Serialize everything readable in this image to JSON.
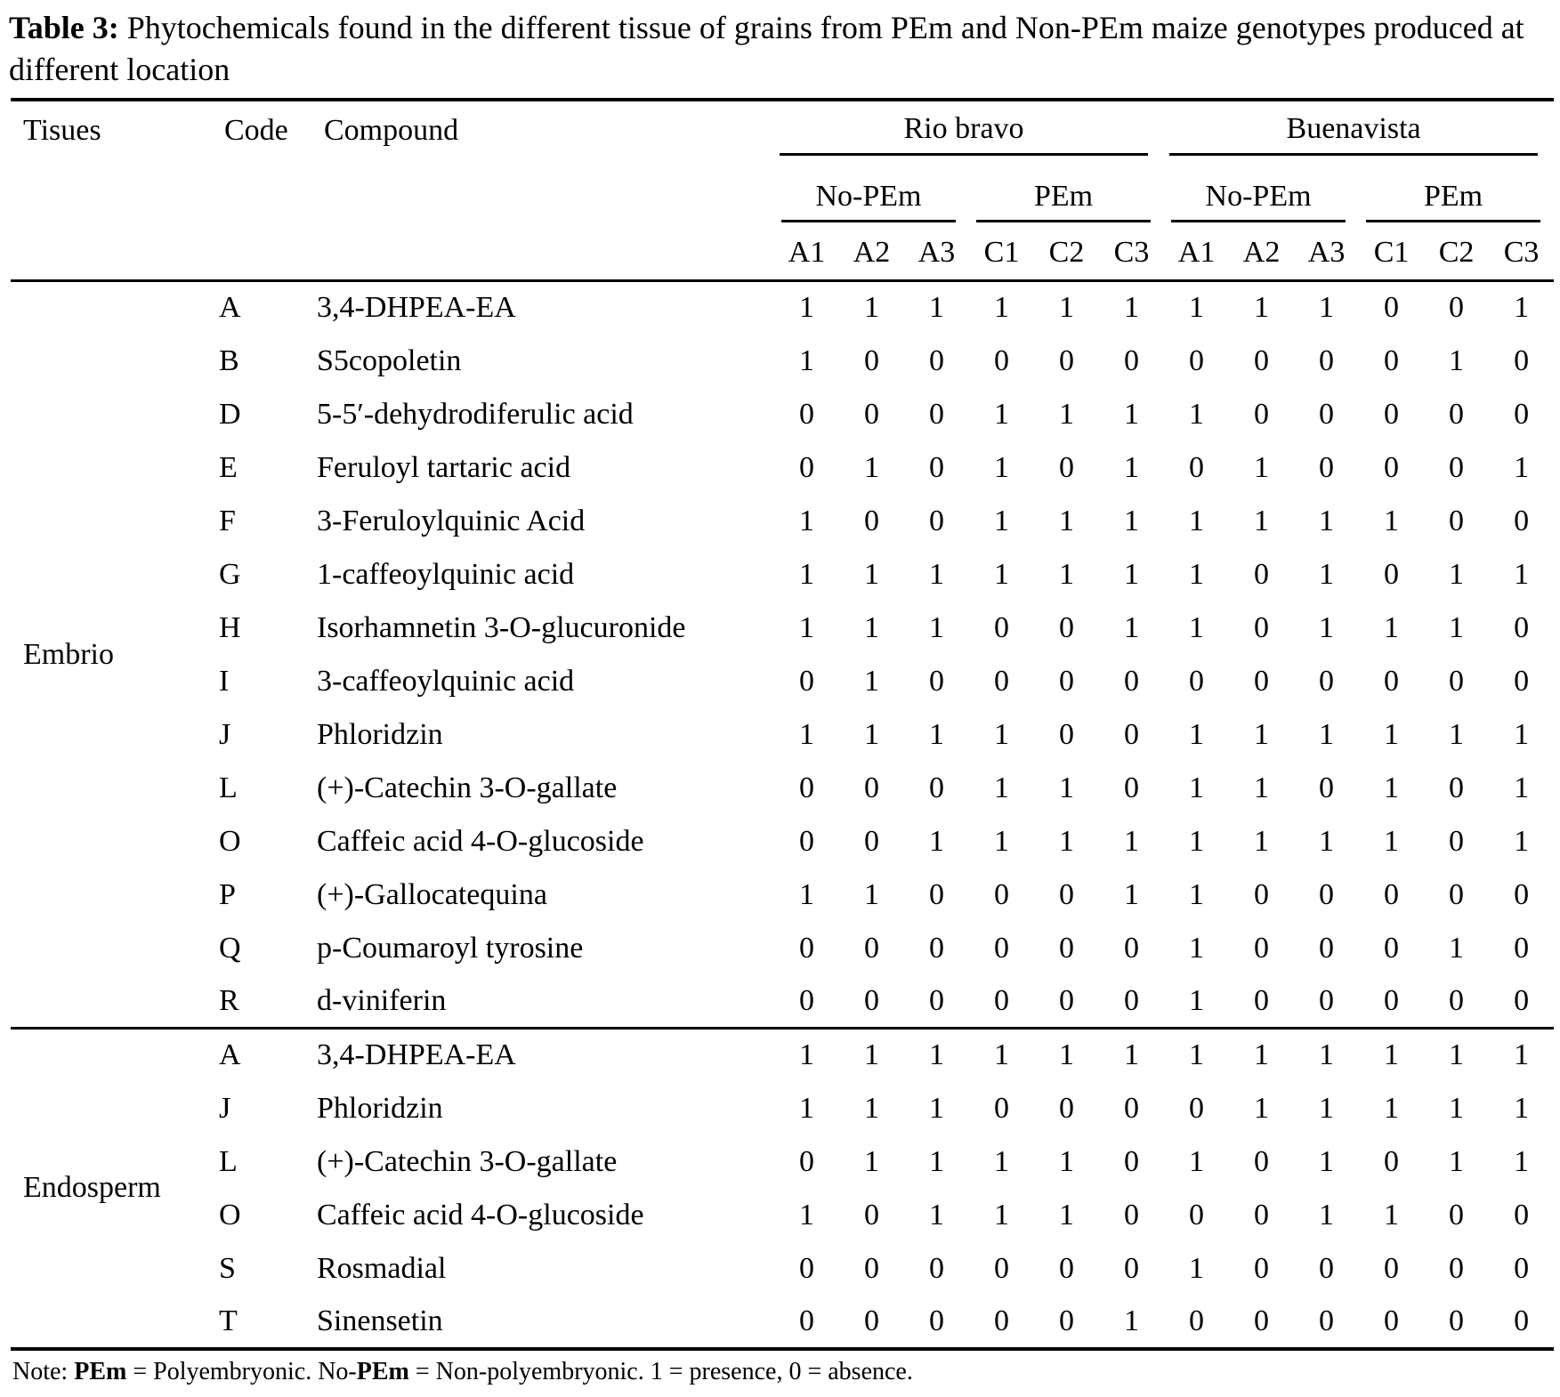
{
  "title": {
    "label": "Table 3:",
    "text": "Phytochemicals found in the different tissue of grains from PEm and Non-PEm maize genotypes produced at different location"
  },
  "header": {
    "tissues": "Tisues",
    "code": "Code",
    "compound": "Compound",
    "locations": [
      {
        "name": "Rio bravo",
        "groups": [
          {
            "name": "No-PEm",
            "cols": [
              "A1",
              "A2",
              "A3"
            ]
          },
          {
            "name": "PEm",
            "cols": [
              "C1",
              "C2",
              "C3"
            ]
          }
        ]
      },
      {
        "name": "Buenavista",
        "groups": [
          {
            "name": "No-PEm",
            "cols": [
              "A1",
              "A2",
              "A3"
            ]
          },
          {
            "name": "PEm",
            "cols": [
              "C1",
              "C2",
              "C3"
            ]
          }
        ]
      }
    ]
  },
  "sections": [
    {
      "tissue": "Embrio",
      "rows": [
        {
          "code": "A",
          "compound": "3,4-DHPEA-EA",
          "values": [
            1,
            1,
            1,
            1,
            1,
            1,
            1,
            1,
            1,
            0,
            0,
            1
          ]
        },
        {
          "code": "B",
          "compound": "S5copoletin",
          "values": [
            1,
            0,
            0,
            0,
            0,
            0,
            0,
            0,
            0,
            0,
            1,
            0
          ]
        },
        {
          "code": "D",
          "compound": "5-5′-dehydrodiferulic acid",
          "values": [
            0,
            0,
            0,
            1,
            1,
            1,
            1,
            0,
            0,
            0,
            0,
            0
          ]
        },
        {
          "code": "E",
          "compound": "Feruloyl tartaric acid",
          "values": [
            0,
            1,
            0,
            1,
            0,
            1,
            0,
            1,
            0,
            0,
            0,
            1
          ]
        },
        {
          "code": "F",
          "compound": "3-Feruloylquinic Acid",
          "values": [
            1,
            0,
            0,
            1,
            1,
            1,
            1,
            1,
            1,
            1,
            0,
            0
          ]
        },
        {
          "code": "G",
          "compound": "1-caffeoylquinic acid",
          "values": [
            1,
            1,
            1,
            1,
            1,
            1,
            1,
            0,
            1,
            0,
            1,
            1
          ]
        },
        {
          "code": "H",
          "compound": "Isorhamnetin 3-O-glucuronide",
          "values": [
            1,
            1,
            1,
            0,
            0,
            1,
            1,
            0,
            1,
            1,
            1,
            0
          ]
        },
        {
          "code": "I",
          "compound": "3-caffeoylquinic acid",
          "values": [
            0,
            1,
            0,
            0,
            0,
            0,
            0,
            0,
            0,
            0,
            0,
            0
          ]
        },
        {
          "code": "J",
          "compound": "Phloridzin",
          "values": [
            1,
            1,
            1,
            1,
            0,
            0,
            1,
            1,
            1,
            1,
            1,
            1
          ]
        },
        {
          "code": "L",
          "compound": "(+)-Catechin 3-O-gallate",
          "values": [
            0,
            0,
            0,
            1,
            1,
            0,
            1,
            1,
            0,
            1,
            0,
            1
          ]
        },
        {
          "code": "O",
          "compound": "Caffeic acid 4-O-glucoside",
          "values": [
            0,
            0,
            1,
            1,
            1,
            1,
            1,
            1,
            1,
            1,
            0,
            1
          ]
        },
        {
          "code": "P",
          "compound": "(+)-Gallocatequina",
          "values": [
            1,
            1,
            0,
            0,
            0,
            1,
            1,
            0,
            0,
            0,
            0,
            0
          ]
        },
        {
          "code": "Q",
          "compound": "p-Coumaroyl tyrosine",
          "values": [
            0,
            0,
            0,
            0,
            0,
            0,
            1,
            0,
            0,
            0,
            1,
            0
          ]
        },
        {
          "code": "R",
          "compound": "d-viniferin",
          "values": [
            0,
            0,
            0,
            0,
            0,
            0,
            1,
            0,
            0,
            0,
            0,
            0
          ]
        }
      ]
    },
    {
      "tissue": "Endosperm",
      "rows": [
        {
          "code": "A",
          "compound": "3,4-DHPEA-EA",
          "values": [
            1,
            1,
            1,
            1,
            1,
            1,
            1,
            1,
            1,
            1,
            1,
            1
          ]
        },
        {
          "code": "J",
          "compound": "Phloridzin",
          "values": [
            1,
            1,
            1,
            0,
            0,
            0,
            0,
            1,
            1,
            1,
            1,
            1
          ]
        },
        {
          "code": "L",
          "compound": "(+)-Catechin 3-O-gallate",
          "values": [
            0,
            1,
            1,
            1,
            1,
            0,
            1,
            0,
            1,
            0,
            1,
            1
          ]
        },
        {
          "code": "O",
          "compound": "Caffeic acid 4-O-glucoside",
          "values": [
            1,
            0,
            1,
            1,
            1,
            0,
            0,
            0,
            1,
            1,
            0,
            0
          ]
        },
        {
          "code": "S",
          "compound": "Rosmadial",
          "values": [
            0,
            0,
            0,
            0,
            0,
            0,
            1,
            0,
            0,
            0,
            0,
            0
          ]
        },
        {
          "code": "T",
          "compound": "Sinensetin",
          "values": [
            0,
            0,
            0,
            0,
            0,
            1,
            0,
            0,
            0,
            0,
            0,
            0
          ]
        }
      ]
    }
  ],
  "note_segments": [
    {
      "text": "Note: ",
      "bold": false
    },
    {
      "text": "PEm",
      "bold": true
    },
    {
      "text": " = Polyembryonic. No-",
      "bold": false
    },
    {
      "text": "PEm",
      "bold": true
    },
    {
      "text": " = Non-polyembryonic. 1 = presence, 0 = absence.",
      "bold": false
    }
  ]
}
